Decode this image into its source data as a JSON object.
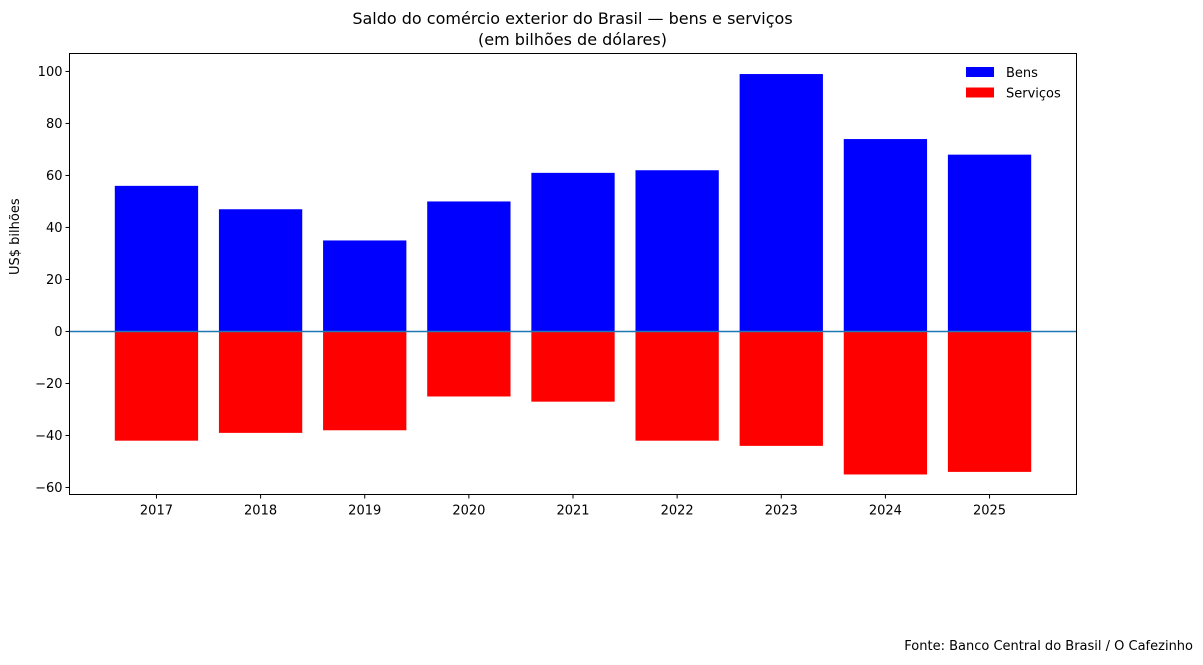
{
  "chart_data": {
    "type": "bar",
    "title": "Saldo do comércio exterior do Brasil — bens e serviços",
    "subtitle": "(em bilhões de dólares)",
    "xlabel": "",
    "ylabel": "US$ bilhões",
    "categories": [
      "2017",
      "2018",
      "2019",
      "2020",
      "2021",
      "2022",
      "2023",
      "2024",
      "2025"
    ],
    "series": [
      {
        "name": "Bens",
        "color": "#0000ff",
        "values": [
          56,
          47,
          35,
          50,
          61,
          62,
          99,
          74,
          68
        ]
      },
      {
        "name": "Serviços",
        "color": "#ff0000",
        "values": [
          -42,
          -39,
          -38,
          -25,
          -27,
          -42,
          -44,
          -55,
          -54
        ]
      }
    ],
    "ylim": [
      -62.7,
      106.9
    ],
    "yticks": [
      -60,
      -40,
      -20,
      0,
      20,
      40,
      60,
      80,
      100
    ],
    "ytick_labels": [
      "−60",
      "−40",
      "−20",
      "0",
      "20",
      "40",
      "60",
      "80",
      "100"
    ],
    "zero_line_color": "#1f77b4",
    "grid": false,
    "legend_position": "top-right",
    "source": "Fonte: Banco Central do Brasil / O Cafezinho"
  }
}
